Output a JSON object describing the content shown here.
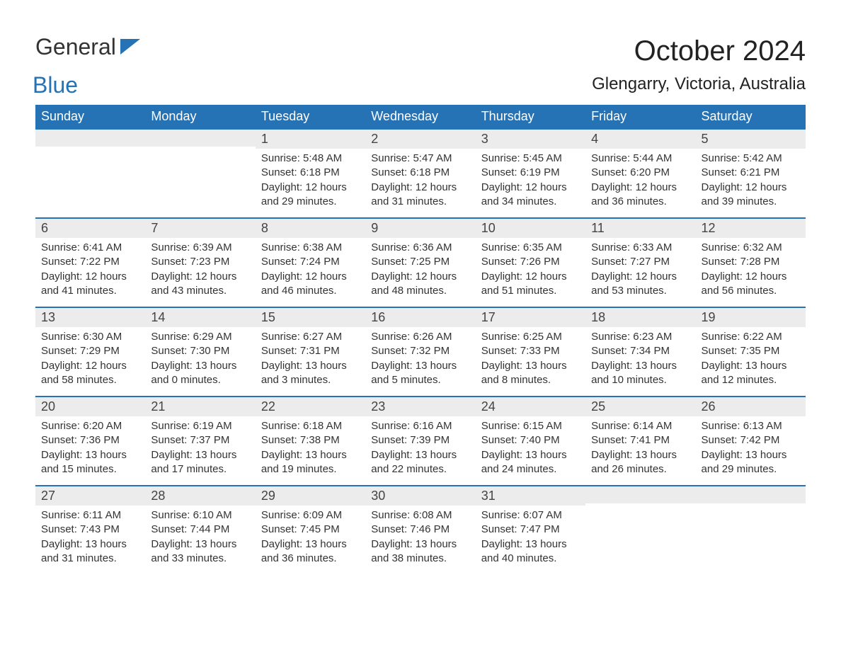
{
  "logo": {
    "part1": "General",
    "part2": "Blue",
    "icon_color": "#2572b4",
    "text1_color": "#333333",
    "text2_color": "#2572b4"
  },
  "title": "October 2024",
  "location": "Glengarry, Victoria, Australia",
  "colors": {
    "header_bg": "#2572b4",
    "header_text": "#ffffff",
    "daynum_bg": "#ececec",
    "border_top": "#2572b4",
    "body_text": "#333333",
    "background": "#ffffff"
  },
  "typography": {
    "title_fontsize": 40,
    "location_fontsize": 24,
    "dayheader_fontsize": 18,
    "daynum_fontsize": 18,
    "body_fontsize": 15
  },
  "day_headers": [
    "Sunday",
    "Monday",
    "Tuesday",
    "Wednesday",
    "Thursday",
    "Friday",
    "Saturday"
  ],
  "weeks": [
    [
      null,
      null,
      {
        "n": "1",
        "sunrise": "Sunrise: 5:48 AM",
        "sunset": "Sunset: 6:18 PM",
        "daylight": "Daylight: 12 hours and 29 minutes."
      },
      {
        "n": "2",
        "sunrise": "Sunrise: 5:47 AM",
        "sunset": "Sunset: 6:18 PM",
        "daylight": "Daylight: 12 hours and 31 minutes."
      },
      {
        "n": "3",
        "sunrise": "Sunrise: 5:45 AM",
        "sunset": "Sunset: 6:19 PM",
        "daylight": "Daylight: 12 hours and 34 minutes."
      },
      {
        "n": "4",
        "sunrise": "Sunrise: 5:44 AM",
        "sunset": "Sunset: 6:20 PM",
        "daylight": "Daylight: 12 hours and 36 minutes."
      },
      {
        "n": "5",
        "sunrise": "Sunrise: 5:42 AM",
        "sunset": "Sunset: 6:21 PM",
        "daylight": "Daylight: 12 hours and 39 minutes."
      }
    ],
    [
      {
        "n": "6",
        "sunrise": "Sunrise: 6:41 AM",
        "sunset": "Sunset: 7:22 PM",
        "daylight": "Daylight: 12 hours and 41 minutes."
      },
      {
        "n": "7",
        "sunrise": "Sunrise: 6:39 AM",
        "sunset": "Sunset: 7:23 PM",
        "daylight": "Daylight: 12 hours and 43 minutes."
      },
      {
        "n": "8",
        "sunrise": "Sunrise: 6:38 AM",
        "sunset": "Sunset: 7:24 PM",
        "daylight": "Daylight: 12 hours and 46 minutes."
      },
      {
        "n": "9",
        "sunrise": "Sunrise: 6:36 AM",
        "sunset": "Sunset: 7:25 PM",
        "daylight": "Daylight: 12 hours and 48 minutes."
      },
      {
        "n": "10",
        "sunrise": "Sunrise: 6:35 AM",
        "sunset": "Sunset: 7:26 PM",
        "daylight": "Daylight: 12 hours and 51 minutes."
      },
      {
        "n": "11",
        "sunrise": "Sunrise: 6:33 AM",
        "sunset": "Sunset: 7:27 PM",
        "daylight": "Daylight: 12 hours and 53 minutes."
      },
      {
        "n": "12",
        "sunrise": "Sunrise: 6:32 AM",
        "sunset": "Sunset: 7:28 PM",
        "daylight": "Daylight: 12 hours and 56 minutes."
      }
    ],
    [
      {
        "n": "13",
        "sunrise": "Sunrise: 6:30 AM",
        "sunset": "Sunset: 7:29 PM",
        "daylight": "Daylight: 12 hours and 58 minutes."
      },
      {
        "n": "14",
        "sunrise": "Sunrise: 6:29 AM",
        "sunset": "Sunset: 7:30 PM",
        "daylight": "Daylight: 13 hours and 0 minutes."
      },
      {
        "n": "15",
        "sunrise": "Sunrise: 6:27 AM",
        "sunset": "Sunset: 7:31 PM",
        "daylight": "Daylight: 13 hours and 3 minutes."
      },
      {
        "n": "16",
        "sunrise": "Sunrise: 6:26 AM",
        "sunset": "Sunset: 7:32 PM",
        "daylight": "Daylight: 13 hours and 5 minutes."
      },
      {
        "n": "17",
        "sunrise": "Sunrise: 6:25 AM",
        "sunset": "Sunset: 7:33 PM",
        "daylight": "Daylight: 13 hours and 8 minutes."
      },
      {
        "n": "18",
        "sunrise": "Sunrise: 6:23 AM",
        "sunset": "Sunset: 7:34 PM",
        "daylight": "Daylight: 13 hours and 10 minutes."
      },
      {
        "n": "19",
        "sunrise": "Sunrise: 6:22 AM",
        "sunset": "Sunset: 7:35 PM",
        "daylight": "Daylight: 13 hours and 12 minutes."
      }
    ],
    [
      {
        "n": "20",
        "sunrise": "Sunrise: 6:20 AM",
        "sunset": "Sunset: 7:36 PM",
        "daylight": "Daylight: 13 hours and 15 minutes."
      },
      {
        "n": "21",
        "sunrise": "Sunrise: 6:19 AM",
        "sunset": "Sunset: 7:37 PM",
        "daylight": "Daylight: 13 hours and 17 minutes."
      },
      {
        "n": "22",
        "sunrise": "Sunrise: 6:18 AM",
        "sunset": "Sunset: 7:38 PM",
        "daylight": "Daylight: 13 hours and 19 minutes."
      },
      {
        "n": "23",
        "sunrise": "Sunrise: 6:16 AM",
        "sunset": "Sunset: 7:39 PM",
        "daylight": "Daylight: 13 hours and 22 minutes."
      },
      {
        "n": "24",
        "sunrise": "Sunrise: 6:15 AM",
        "sunset": "Sunset: 7:40 PM",
        "daylight": "Daylight: 13 hours and 24 minutes."
      },
      {
        "n": "25",
        "sunrise": "Sunrise: 6:14 AM",
        "sunset": "Sunset: 7:41 PM",
        "daylight": "Daylight: 13 hours and 26 minutes."
      },
      {
        "n": "26",
        "sunrise": "Sunrise: 6:13 AM",
        "sunset": "Sunset: 7:42 PM",
        "daylight": "Daylight: 13 hours and 29 minutes."
      }
    ],
    [
      {
        "n": "27",
        "sunrise": "Sunrise: 6:11 AM",
        "sunset": "Sunset: 7:43 PM",
        "daylight": "Daylight: 13 hours and 31 minutes."
      },
      {
        "n": "28",
        "sunrise": "Sunrise: 6:10 AM",
        "sunset": "Sunset: 7:44 PM",
        "daylight": "Daylight: 13 hours and 33 minutes."
      },
      {
        "n": "29",
        "sunrise": "Sunrise: 6:09 AM",
        "sunset": "Sunset: 7:45 PM",
        "daylight": "Daylight: 13 hours and 36 minutes."
      },
      {
        "n": "30",
        "sunrise": "Sunrise: 6:08 AM",
        "sunset": "Sunset: 7:46 PM",
        "daylight": "Daylight: 13 hours and 38 minutes."
      },
      {
        "n": "31",
        "sunrise": "Sunrise: 6:07 AM",
        "sunset": "Sunset: 7:47 PM",
        "daylight": "Daylight: 13 hours and 40 minutes."
      },
      null,
      null
    ]
  ]
}
